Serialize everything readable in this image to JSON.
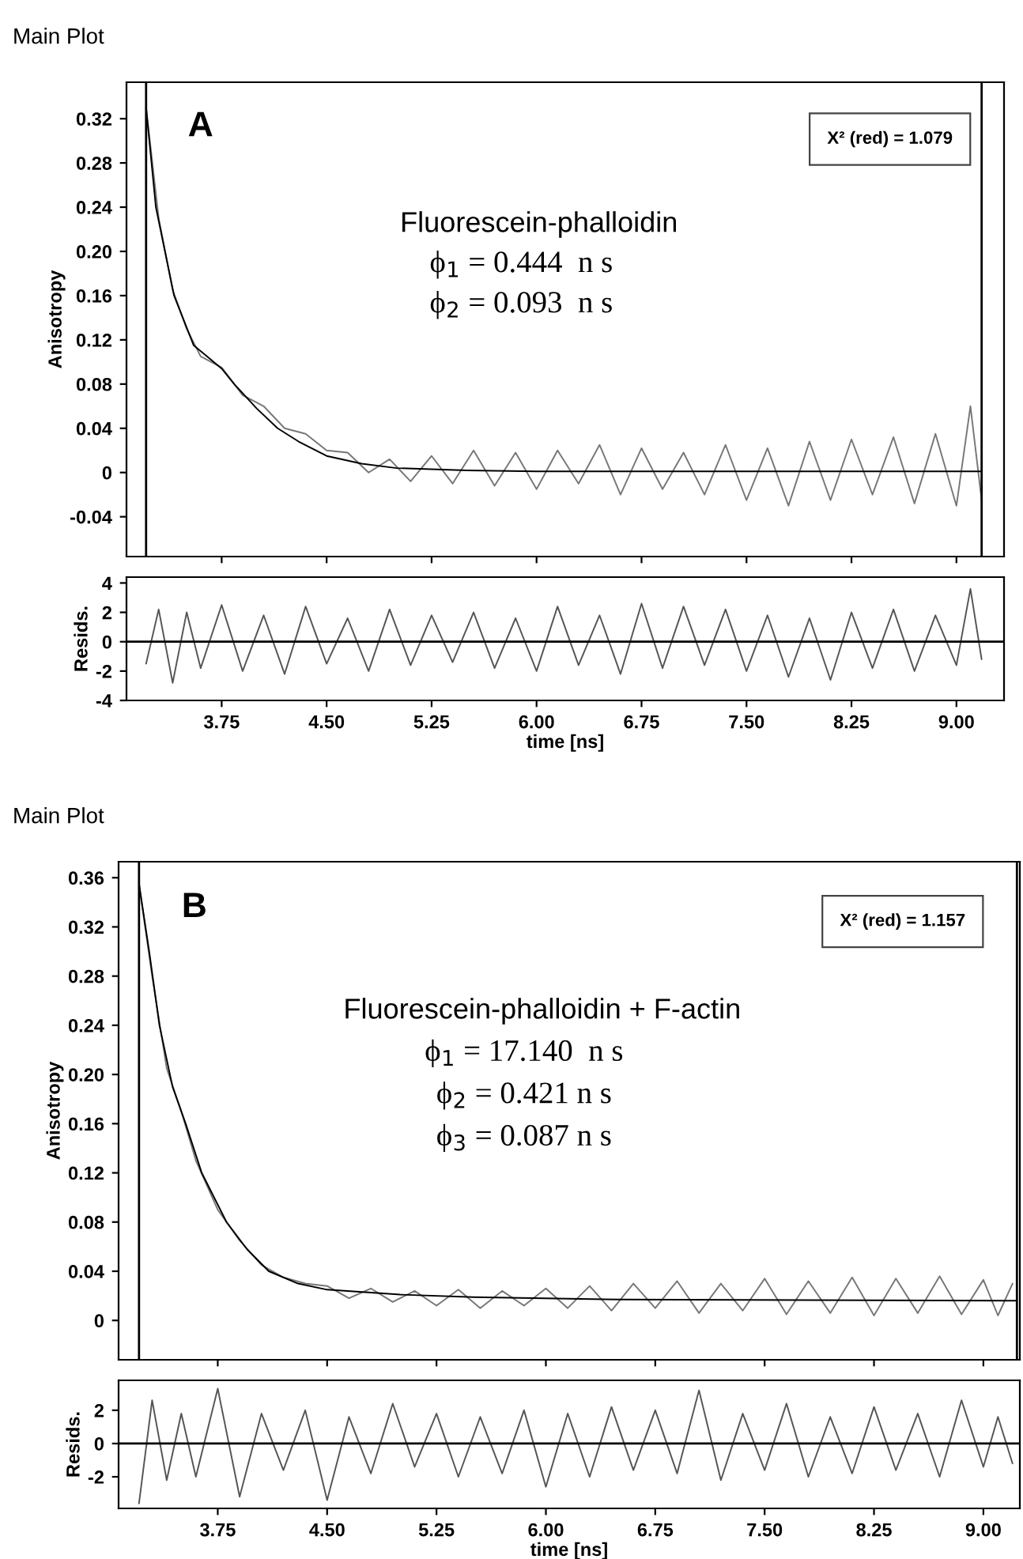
{
  "chart_data": [
    {
      "type": "line",
      "title": "Main Plot",
      "ylabel": "Anisotropy",
      "tick_labels": "y",
      "grid": false,
      "legend": false,
      "annotations": [
        "A",
        "Fluorescein-phalloidin",
        "ϕ$_{1}$ = 0.444  n s",
        "ϕ$_{2}$ = 0.093  n s",
        "X² (red) = 1.079"
      ],
      "xlim": [
        3.07,
        9.34
      ],
      "xticks": [
        {
          "value": 3.75,
          "label": null
        },
        {
          "value": 4.5,
          "label": null
        },
        {
          "value": 5.25,
          "label": null
        },
        {
          "value": 6,
          "label": null
        },
        {
          "value": 6.75,
          "label": null
        },
        {
          "value": 7.5,
          "label": null
        },
        {
          "value": 8.25,
          "label": null
        },
        {
          "value": 9,
          "label": null
        }
      ],
      "ylim": [
        -0.076,
        0.353
      ],
      "yticks": [
        -0.04,
        0,
        0.04,
        0.08,
        0.12,
        0.16,
        {
          "value": 0.2,
          "label": "0.20"
        },
        0.24,
        0.28,
        0.32
      ],
      "ref_lines": [
        {
          "axis": "x",
          "value": 3.21,
          "color": "#000000"
        },
        {
          "axis": "x",
          "value": 9.18,
          "color": "#000000"
        }
      ],
      "series": [
        {
          "color": "#777777",
          "x": [
            3.21,
            3.3,
            3.4,
            3.5,
            3.6,
            3.75,
            3.9,
            4.05,
            4.2,
            4.35,
            4.5,
            4.65,
            4.8,
            4.95,
            5.1,
            5.25,
            5.4,
            5.55,
            5.7,
            5.85,
            6.0,
            6.15,
            6.3,
            6.45,
            6.6,
            6.75,
            6.9,
            7.05,
            7.2,
            7.35,
            7.5,
            7.65,
            7.8,
            7.95,
            8.1,
            8.25,
            8.4,
            8.55,
            8.7,
            8.85,
            9.0,
            9.1,
            9.18
          ],
          "values": [
            0.33,
            0.23,
            0.165,
            0.13,
            0.105,
            0.095,
            0.07,
            0.06,
            0.04,
            0.035,
            0.02,
            0.018,
            0.0,
            0.012,
            -0.008,
            0.015,
            -0.01,
            0.02,
            -0.012,
            0.018,
            -0.015,
            0.02,
            -0.01,
            0.025,
            -0.02,
            0.022,
            -0.015,
            0.018,
            -0.02,
            0.025,
            -0.025,
            0.022,
            -0.03,
            0.028,
            -0.025,
            0.03,
            -0.02,
            0.032,
            -0.028,
            0.035,
            -0.03,
            0.06,
            -0.025
          ]
        },
        {
          "color": "#000000",
          "x": [
            3.21,
            3.28,
            3.41,
            3.55,
            3.75,
            3.84,
            4.0,
            4.15,
            4.3,
            4.5,
            4.75,
            5.0,
            5.5,
            6.0,
            9.18
          ],
          "values": [
            0.33,
            0.24,
            0.16,
            0.115,
            0.094,
            0.08,
            0.058,
            0.04,
            0.028,
            0.015,
            0.008,
            0.004,
            0.002,
            0.001,
            0.001
          ]
        }
      ]
    },
    {
      "type": "line",
      "ylabel": "Resids.",
      "xlabel": "time [ns]",
      "grid": false,
      "legend": false,
      "xlim": [
        3.07,
        9.34
      ],
      "xticks": [
        3.75,
        {
          "value": 4.5,
          "label": "4.50"
        },
        5.25,
        {
          "value": 6,
          "label": "6.00"
        },
        6.75,
        {
          "value": 7.5,
          "label": "7.50"
        },
        8.25,
        {
          "value": 9,
          "label": "9.00"
        }
      ],
      "ylim": [
        -4,
        4.4
      ],
      "yticks": [
        -4,
        -2,
        0,
        2,
        4
      ],
      "ref_lines": [
        {
          "axis": "y",
          "value": 0,
          "color": "#000000"
        }
      ],
      "series": [
        {
          "color": "#555555",
          "x": [
            3.21,
            3.3,
            3.4,
            3.5,
            3.6,
            3.75,
            3.9,
            4.05,
            4.2,
            4.35,
            4.5,
            4.65,
            4.8,
            4.95,
            5.1,
            5.25,
            5.4,
            5.55,
            5.7,
            5.85,
            6.0,
            6.15,
            6.3,
            6.45,
            6.6,
            6.75,
            6.9,
            7.05,
            7.2,
            7.35,
            7.5,
            7.65,
            7.8,
            7.95,
            8.1,
            8.25,
            8.4,
            8.55,
            8.7,
            8.85,
            9.0,
            9.1,
            9.18
          ],
          "values": [
            -1.5,
            2.2,
            -2.8,
            2.0,
            -1.8,
            2.5,
            -2.0,
            1.8,
            -2.2,
            2.4,
            -1.5,
            1.6,
            -2.0,
            2.2,
            -1.6,
            1.8,
            -1.4,
            2.0,
            -1.8,
            1.6,
            -2.0,
            2.4,
            -1.6,
            1.8,
            -2.2,
            2.6,
            -1.8,
            2.4,
            -1.6,
            2.2,
            -2.0,
            1.8,
            -2.4,
            1.6,
            -2.6,
            2.0,
            -1.8,
            2.2,
            -2.0,
            1.8,
            -1.6,
            3.6,
            -1.2
          ]
        }
      ]
    },
    {
      "type": "line",
      "title": "Main Plot",
      "ylabel": "Anisotropy",
      "tick_labels": "y",
      "grid": false,
      "legend": false,
      "annotations": [
        "B",
        "Fluorescein-phalloidin + F-actin",
        "ϕ$_{1}$ = 17.140  n s",
        "ϕ$_{2}$ = 0.421 n s",
        "ϕ$_{3}$ = 0.087 n s",
        "X² (red) = 1.157"
      ],
      "xlim": [
        3.07,
        9.25
      ],
      "xticks": [
        {
          "value": 3.75,
          "label": null
        },
        {
          "value": 4.5,
          "label": null
        },
        {
          "value": 5.25,
          "label": null
        },
        {
          "value": 6,
          "label": null
        },
        {
          "value": 6.75,
          "label": null
        },
        {
          "value": 7.5,
          "label": null
        },
        {
          "value": 8.25,
          "label": null
        },
        {
          "value": 9,
          "label": null
        }
      ],
      "ylim": [
        -0.032,
        0.373
      ],
      "yticks": [
        0,
        0.04,
        0.08,
        0.12,
        0.16,
        {
          "value": 0.2,
          "label": "0.20"
        },
        0.24,
        0.28,
        0.32,
        0.36
      ],
      "ref_lines": [
        {
          "axis": "x",
          "value": 3.21,
          "color": "#000000"
        },
        {
          "axis": "x",
          "value": 9.23,
          "color": "#000000"
        }
      ],
      "series": [
        {
          "color": "#777777",
          "x": [
            3.21,
            3.3,
            3.4,
            3.5,
            3.6,
            3.75,
            3.9,
            4.05,
            4.2,
            4.35,
            4.5,
            4.65,
            4.8,
            4.95,
            5.1,
            5.25,
            5.4,
            5.55,
            5.7,
            5.85,
            6.0,
            6.15,
            6.3,
            6.45,
            6.6,
            6.75,
            6.9,
            7.05,
            7.2,
            7.35,
            7.5,
            7.65,
            7.8,
            7.95,
            8.1,
            8.25,
            8.4,
            8.55,
            8.7,
            8.85,
            9.0,
            9.1,
            9.2
          ],
          "values": [
            0.355,
            0.28,
            0.205,
            0.17,
            0.13,
            0.09,
            0.065,
            0.045,
            0.035,
            0.03,
            0.028,
            0.018,
            0.026,
            0.015,
            0.024,
            0.012,
            0.025,
            0.01,
            0.024,
            0.012,
            0.026,
            0.01,
            0.028,
            0.008,
            0.03,
            0.01,
            0.032,
            0.006,
            0.03,
            0.008,
            0.034,
            0.005,
            0.032,
            0.006,
            0.035,
            0.004,
            0.034,
            0.006,
            0.036,
            0.005,
            0.033,
            0.004,
            0.03
          ]
        },
        {
          "color": "#000000",
          "x": [
            3.21,
            3.28,
            3.35,
            3.44,
            3.53,
            3.64,
            3.81,
            3.95,
            4.1,
            4.3,
            4.5,
            5.0,
            5.5,
            6.5,
            9.23
          ],
          "values": [
            0.355,
            0.3,
            0.24,
            0.19,
            0.16,
            0.12,
            0.08,
            0.058,
            0.04,
            0.03,
            0.025,
            0.021,
            0.019,
            0.017,
            0.016
          ]
        }
      ]
    },
    {
      "type": "line",
      "ylabel": "Resids.",
      "xlabel": "time [ns]",
      "grid": false,
      "legend": false,
      "xlim": [
        3.07,
        9.25
      ],
      "xticks": [
        3.75,
        {
          "value": 4.5,
          "label": "4.50"
        },
        5.25,
        {
          "value": 6,
          "label": "6.00"
        },
        6.75,
        {
          "value": 7.5,
          "label": "7.50"
        },
        8.25,
        {
          "value": 9,
          "label": "9.00"
        }
      ],
      "ylim": [
        -3.9,
        3.8
      ],
      "yticks": [
        -2,
        0,
        2
      ],
      "ref_lines": [
        {
          "axis": "y",
          "value": 0,
          "color": "#000000"
        }
      ],
      "series": [
        {
          "color": "#555555",
          "x": [
            3.21,
            3.3,
            3.4,
            3.5,
            3.6,
            3.75,
            3.9,
            4.05,
            4.2,
            4.35,
            4.5,
            4.65,
            4.8,
            4.95,
            5.1,
            5.25,
            5.4,
            5.55,
            5.7,
            5.85,
            6.0,
            6.15,
            6.3,
            6.45,
            6.6,
            6.75,
            6.9,
            7.05,
            7.2,
            7.35,
            7.5,
            7.65,
            7.8,
            7.95,
            8.1,
            8.25,
            8.4,
            8.55,
            8.7,
            8.85,
            9.0,
            9.1,
            9.2
          ],
          "values": [
            -3.6,
            2.6,
            -2.2,
            1.8,
            -2.0,
            3.3,
            -3.2,
            1.8,
            -1.6,
            2.0,
            -3.4,
            1.6,
            -1.8,
            2.4,
            -1.4,
            1.8,
            -2.0,
            1.6,
            -1.8,
            2.0,
            -2.6,
            1.8,
            -2.0,
            2.2,
            -1.6,
            2.0,
            -1.8,
            3.2,
            -2.2,
            1.8,
            -1.6,
            2.4,
            -2.0,
            1.6,
            -1.8,
            2.2,
            -1.6,
            1.8,
            -2.0,
            2.6,
            -1.4,
            1.6,
            -1.2
          ]
        }
      ]
    }
  ]
}
